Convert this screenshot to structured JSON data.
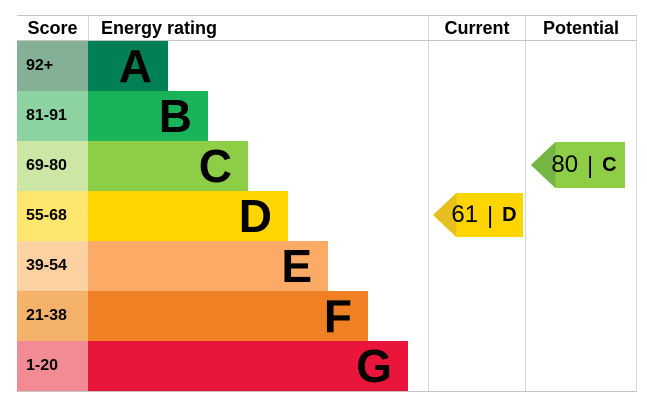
{
  "header": {
    "score": "Score",
    "energy_rating": "Energy rating",
    "current": "Current",
    "potential": "Potential"
  },
  "separator": "|",
  "bands": [
    {
      "score": "92+",
      "letter": "A",
      "bar_color": "#008054",
      "score_color": "#84b095"
    },
    {
      "score": "81-91",
      "letter": "B",
      "bar_color": "#19b459",
      "score_color": "#8dd2a1"
    },
    {
      "score": "69-80",
      "letter": "C",
      "bar_color": "#8dce46",
      "score_color": "#cbe6a5"
    },
    {
      "score": "55-68",
      "letter": "D",
      "bar_color": "#ffd500",
      "score_color": "#ffe66e"
    },
    {
      "score": "39-54",
      "letter": "E",
      "bar_color": "#fcaa65",
      "score_color": "#fdd2a2"
    },
    {
      "score": "21-38",
      "letter": "F",
      "bar_color": "#ef8023",
      "score_color": "#f4b26b"
    },
    {
      "score": "1-20",
      "letter": "G",
      "bar_color": "#e9153b",
      "score_color": "#f28b94"
    }
  ],
  "current": {
    "value": 61,
    "band": "D",
    "row": 3,
    "color": "#ffd500",
    "tip_color": "#e5bf1f"
  },
  "potential": {
    "value": 80,
    "band": "C",
    "row": 2,
    "color": "#8dce46",
    "tip_color": "#75b543"
  },
  "chart_data": {
    "type": "bar",
    "title": "EPC energy efficiency rating chart",
    "categories": [
      "A",
      "B",
      "C",
      "D",
      "E",
      "F",
      "G"
    ],
    "score_ranges": [
      "92+",
      "81-91",
      "69-80",
      "55-68",
      "39-54",
      "21-38",
      "1-20"
    ],
    "relative_bar_lengths": [
      1,
      1.5,
      2,
      2.5,
      3,
      3.5,
      4
    ],
    "band_colors": [
      "#008054",
      "#19b459",
      "#8dce46",
      "#ffd500",
      "#fcaa65",
      "#ef8023",
      "#e9153b"
    ],
    "current_rating": {
      "value": 61,
      "band": "D"
    },
    "potential_rating": {
      "value": 80,
      "band": "C"
    },
    "legend_position": "none",
    "grid": false
  }
}
